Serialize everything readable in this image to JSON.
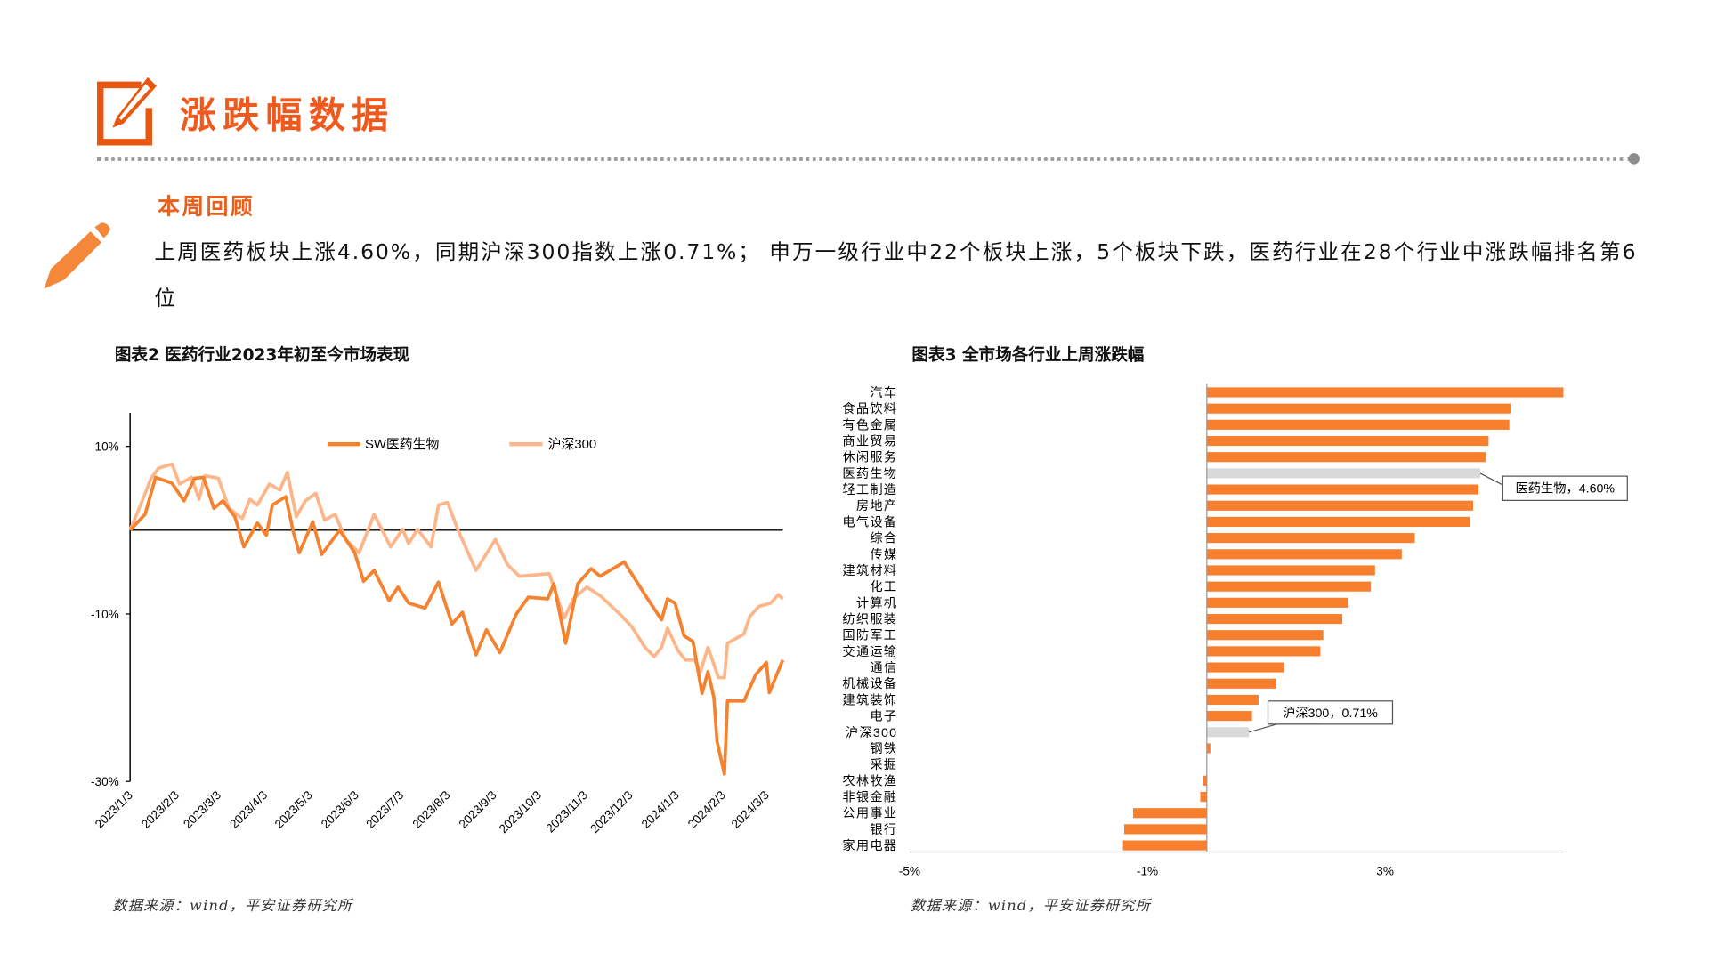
{
  "header": {
    "title": "涨跌幅数据",
    "icon": "edit-square-icon",
    "accent": "#E8560F"
  },
  "review": {
    "heading": "本周回顾",
    "icon": "pencil-icon",
    "text": "上周医药板块上涨4.60%，同期沪深300指数上涨0.71%； 申万一级行业中22个板块上涨，5个板块下跌，医药行业在28个行业中涨跌幅排名第6位"
  },
  "chart_data": [
    {
      "type": "line",
      "title": "图表2  医药行业2023年初至今市场表现",
      "source": "数据来源：wind，平安证券研究所",
      "ylim": [
        -30,
        14
      ],
      "yticks": [
        "10%",
        "-10%",
        "-30%"
      ],
      "ytick_values": [
        10,
        -10,
        -30
      ],
      "xlim": [
        "2023-01-03",
        "2024-03-14"
      ],
      "xticks": [
        "2023/1/3",
        "2023/2/3",
        "2023/3/3",
        "2023/4/3",
        "2023/5/3",
        "2023/6/3",
        "2023/7/3",
        "2023/8/3",
        "2023/9/3",
        "2023/10/3",
        "2023/11/3",
        "2023/12/3",
        "2024/1/3",
        "2024/2/3",
        "2024/3/3"
      ],
      "legend_position": "top",
      "reference_line": 0,
      "series": [
        {
          "name": "SW医药生物",
          "color": "#F5822E",
          "points": [
            [
              "2023-01-03",
              0
            ],
            [
              "2023-01-13",
              1.9
            ],
            [
              "2023-01-20",
              6.3
            ],
            [
              "2023-01-31",
              5.6
            ],
            [
              "2023-02-08",
              3.5
            ],
            [
              "2023-02-15",
              6.2
            ],
            [
              "2023-02-21",
              6.3
            ],
            [
              "2023-02-28",
              2.6
            ],
            [
              "2023-03-06",
              3.5
            ],
            [
              "2023-03-14",
              1.6
            ],
            [
              "2023-03-20",
              -2
            ],
            [
              "2023-03-29",
              0.85
            ],
            [
              "2023-04-04",
              -0.6
            ],
            [
              "2023-04-08",
              3
            ],
            [
              "2023-04-17",
              4
            ],
            [
              "2023-04-22",
              -0.2
            ],
            [
              "2023-04-26",
              -2.7
            ],
            [
              "2023-05-05",
              1
            ],
            [
              "2023-05-11",
              -2.9
            ],
            [
              "2023-05-23",
              0
            ],
            [
              "2023-06-02",
              -2.7
            ],
            [
              "2023-06-08",
              -6.1
            ],
            [
              "2023-06-15",
              -4.8
            ],
            [
              "2023-06-25",
              -8.4
            ],
            [
              "2023-07-01",
              -6.8
            ],
            [
              "2023-07-08",
              -8.7
            ],
            [
              "2023-07-19",
              -9.3
            ],
            [
              "2023-07-28",
              -6.2
            ],
            [
              "2023-08-06",
              -11.2
            ],
            [
              "2023-08-13",
              -9.8
            ],
            [
              "2023-08-22",
              -14.9
            ],
            [
              "2023-08-29",
              -11.9
            ],
            [
              "2023-09-07",
              -14.6
            ],
            [
              "2023-09-18",
              -10
            ],
            [
              "2023-09-26",
              -8
            ],
            [
              "2023-10-09",
              -8.2
            ],
            [
              "2023-10-13",
              -6.4
            ],
            [
              "2023-10-21",
              -13.5
            ],
            [
              "2023-10-29",
              -6.4
            ],
            [
              "2023-11-07",
              -4.6
            ],
            [
              "2023-11-13",
              -5.5
            ],
            [
              "2023-11-29",
              -3.8
            ],
            [
              "2023-12-14",
              -8
            ],
            [
              "2023-12-24",
              -10.7
            ],
            [
              "2023-12-28",
              -8.2
            ],
            [
              "2024-01-02",
              -8.7
            ],
            [
              "2024-01-08",
              -12.6
            ],
            [
              "2024-01-14",
              -13.3
            ],
            [
              "2024-01-20",
              -19.5
            ],
            [
              "2024-01-24",
              -16.9
            ],
            [
              "2024-01-28",
              -20
            ],
            [
              "2024-01-30",
              -25.2
            ],
            [
              "2024-02-04",
              -29.1
            ],
            [
              "2024-02-06",
              -20.4
            ],
            [
              "2024-02-17",
              -20.4
            ],
            [
              "2024-02-25",
              -17.2
            ],
            [
              "2024-03-03",
              -15.8
            ],
            [
              "2024-03-05",
              -19.4
            ],
            [
              "2024-03-10",
              -17.2
            ],
            [
              "2024-03-14",
              -15.5
            ]
          ]
        },
        {
          "name": "沪深300",
          "color": "#FDB68A",
          "points": [
            [
              "2023-01-03",
              0
            ],
            [
              "2023-01-10",
              3
            ],
            [
              "2023-01-17",
              6.2
            ],
            [
              "2023-01-22",
              7.4
            ],
            [
              "2023-01-31",
              7.9
            ],
            [
              "2023-02-05",
              5.5
            ],
            [
              "2023-02-13",
              6.3
            ],
            [
              "2023-02-18",
              3.7
            ],
            [
              "2023-02-22",
              6.5
            ],
            [
              "2023-03-03",
              6.2
            ],
            [
              "2023-03-10",
              2.6
            ],
            [
              "2023-03-19",
              1.4
            ],
            [
              "2023-03-24",
              3.7
            ],
            [
              "2023-03-29",
              3
            ],
            [
              "2023-04-06",
              5.5
            ],
            [
              "2023-04-13",
              4.8
            ],
            [
              "2023-04-18",
              6.9
            ],
            [
              "2023-04-24",
              1.6
            ],
            [
              "2023-04-30",
              3.5
            ],
            [
              "2023-05-07",
              4.4
            ],
            [
              "2023-05-13",
              1.2
            ],
            [
              "2023-05-20",
              1.9
            ],
            [
              "2023-05-27",
              -1.1
            ],
            [
              "2023-06-05",
              -2.7
            ],
            [
              "2023-06-15",
              1.9
            ],
            [
              "2023-06-26",
              -2
            ],
            [
              "2023-07-04",
              0.1
            ],
            [
              "2023-07-08",
              -1.6
            ],
            [
              "2023-07-14",
              0.1
            ],
            [
              "2023-07-23",
              -2
            ],
            [
              "2023-07-28",
              3
            ],
            [
              "2023-08-03",
              3.3
            ],
            [
              "2023-08-10",
              0
            ],
            [
              "2023-08-22",
              -4.8
            ],
            [
              "2023-09-04",
              -1.1
            ],
            [
              "2023-09-12",
              -4.1
            ],
            [
              "2023-09-20",
              -5.5
            ],
            [
              "2023-10-10",
              -5.2
            ],
            [
              "2023-10-20",
              -10.5
            ],
            [
              "2023-10-26",
              -8.2
            ],
            [
              "2023-11-04",
              -6.8
            ],
            [
              "2023-11-13",
              -7.8
            ],
            [
              "2023-11-26",
              -10
            ],
            [
              "2023-12-04",
              -11.5
            ],
            [
              "2023-12-13",
              -14
            ],
            [
              "2023-12-19",
              -15.1
            ],
            [
              "2023-12-24",
              -14
            ],
            [
              "2023-12-28",
              -11.7
            ],
            [
              "2024-01-04",
              -14.4
            ],
            [
              "2024-01-09",
              -15.5
            ],
            [
              "2024-01-15",
              -15.5
            ],
            [
              "2024-01-19",
              -16.9
            ],
            [
              "2024-01-24",
              -14
            ],
            [
              "2024-01-31",
              -17.6
            ],
            [
              "2024-02-04",
              -17.6
            ],
            [
              "2024-02-06",
              -13.5
            ],
            [
              "2024-02-17",
              -12.4
            ],
            [
              "2024-02-21",
              -10.3
            ],
            [
              "2024-02-27",
              -9.1
            ],
            [
              "2024-03-06",
              -8.7
            ],
            [
              "2024-03-11",
              -7.7
            ],
            [
              "2024-03-14",
              -8.2
            ]
          ]
        }
      ]
    },
    {
      "type": "bar",
      "orientation": "horizontal",
      "title": "图表3  全市场各行业上周涨跌幅",
      "source": "数据来源：wind，平安证券研究所",
      "xlim": [
        -5,
        6
      ],
      "xticks": [
        "-5%",
        "-1%",
        "3%"
      ],
      "xtick_values": [
        -5,
        -1,
        3
      ],
      "bar_color": "#F77F2E",
      "highlight_color": "#D9D9D9",
      "categories": [
        "汽车",
        "食品饮料",
        "有色金属",
        "商业贸易",
        "休闲服务",
        "医药生物",
        "轻工制造",
        "房地产",
        "电气设备",
        "综合",
        "传媒",
        "建筑材料",
        "化工",
        "计算机",
        "纺织服装",
        "国防军工",
        "交通运输",
        "通信",
        "机械设备",
        "建筑装饰",
        "电子",
        "沪深300",
        "钢铁",
        "采掘",
        "农林牧渔",
        "非银金融",
        "公用事业",
        "银行",
        "家用电器"
      ],
      "values": [
        6.0,
        5.11,
        5.09,
        4.74,
        4.69,
        4.6,
        4.57,
        4.48,
        4.43,
        3.5,
        3.28,
        2.83,
        2.76,
        2.37,
        2.28,
        1.96,
        1.91,
        1.3,
        1.17,
        0.87,
        0.76,
        0.71,
        0.06,
        0.0,
        -0.06,
        -0.11,
        -1.24,
        -1.39,
        -1.41
      ],
      "highlighted": [
        "医药生物",
        "沪深300"
      ],
      "annotations": [
        {
          "category": "医药生物",
          "text": "医药生物，4.60%"
        },
        {
          "category": "沪深300",
          "text": "沪深300，0.71%"
        }
      ]
    }
  ]
}
